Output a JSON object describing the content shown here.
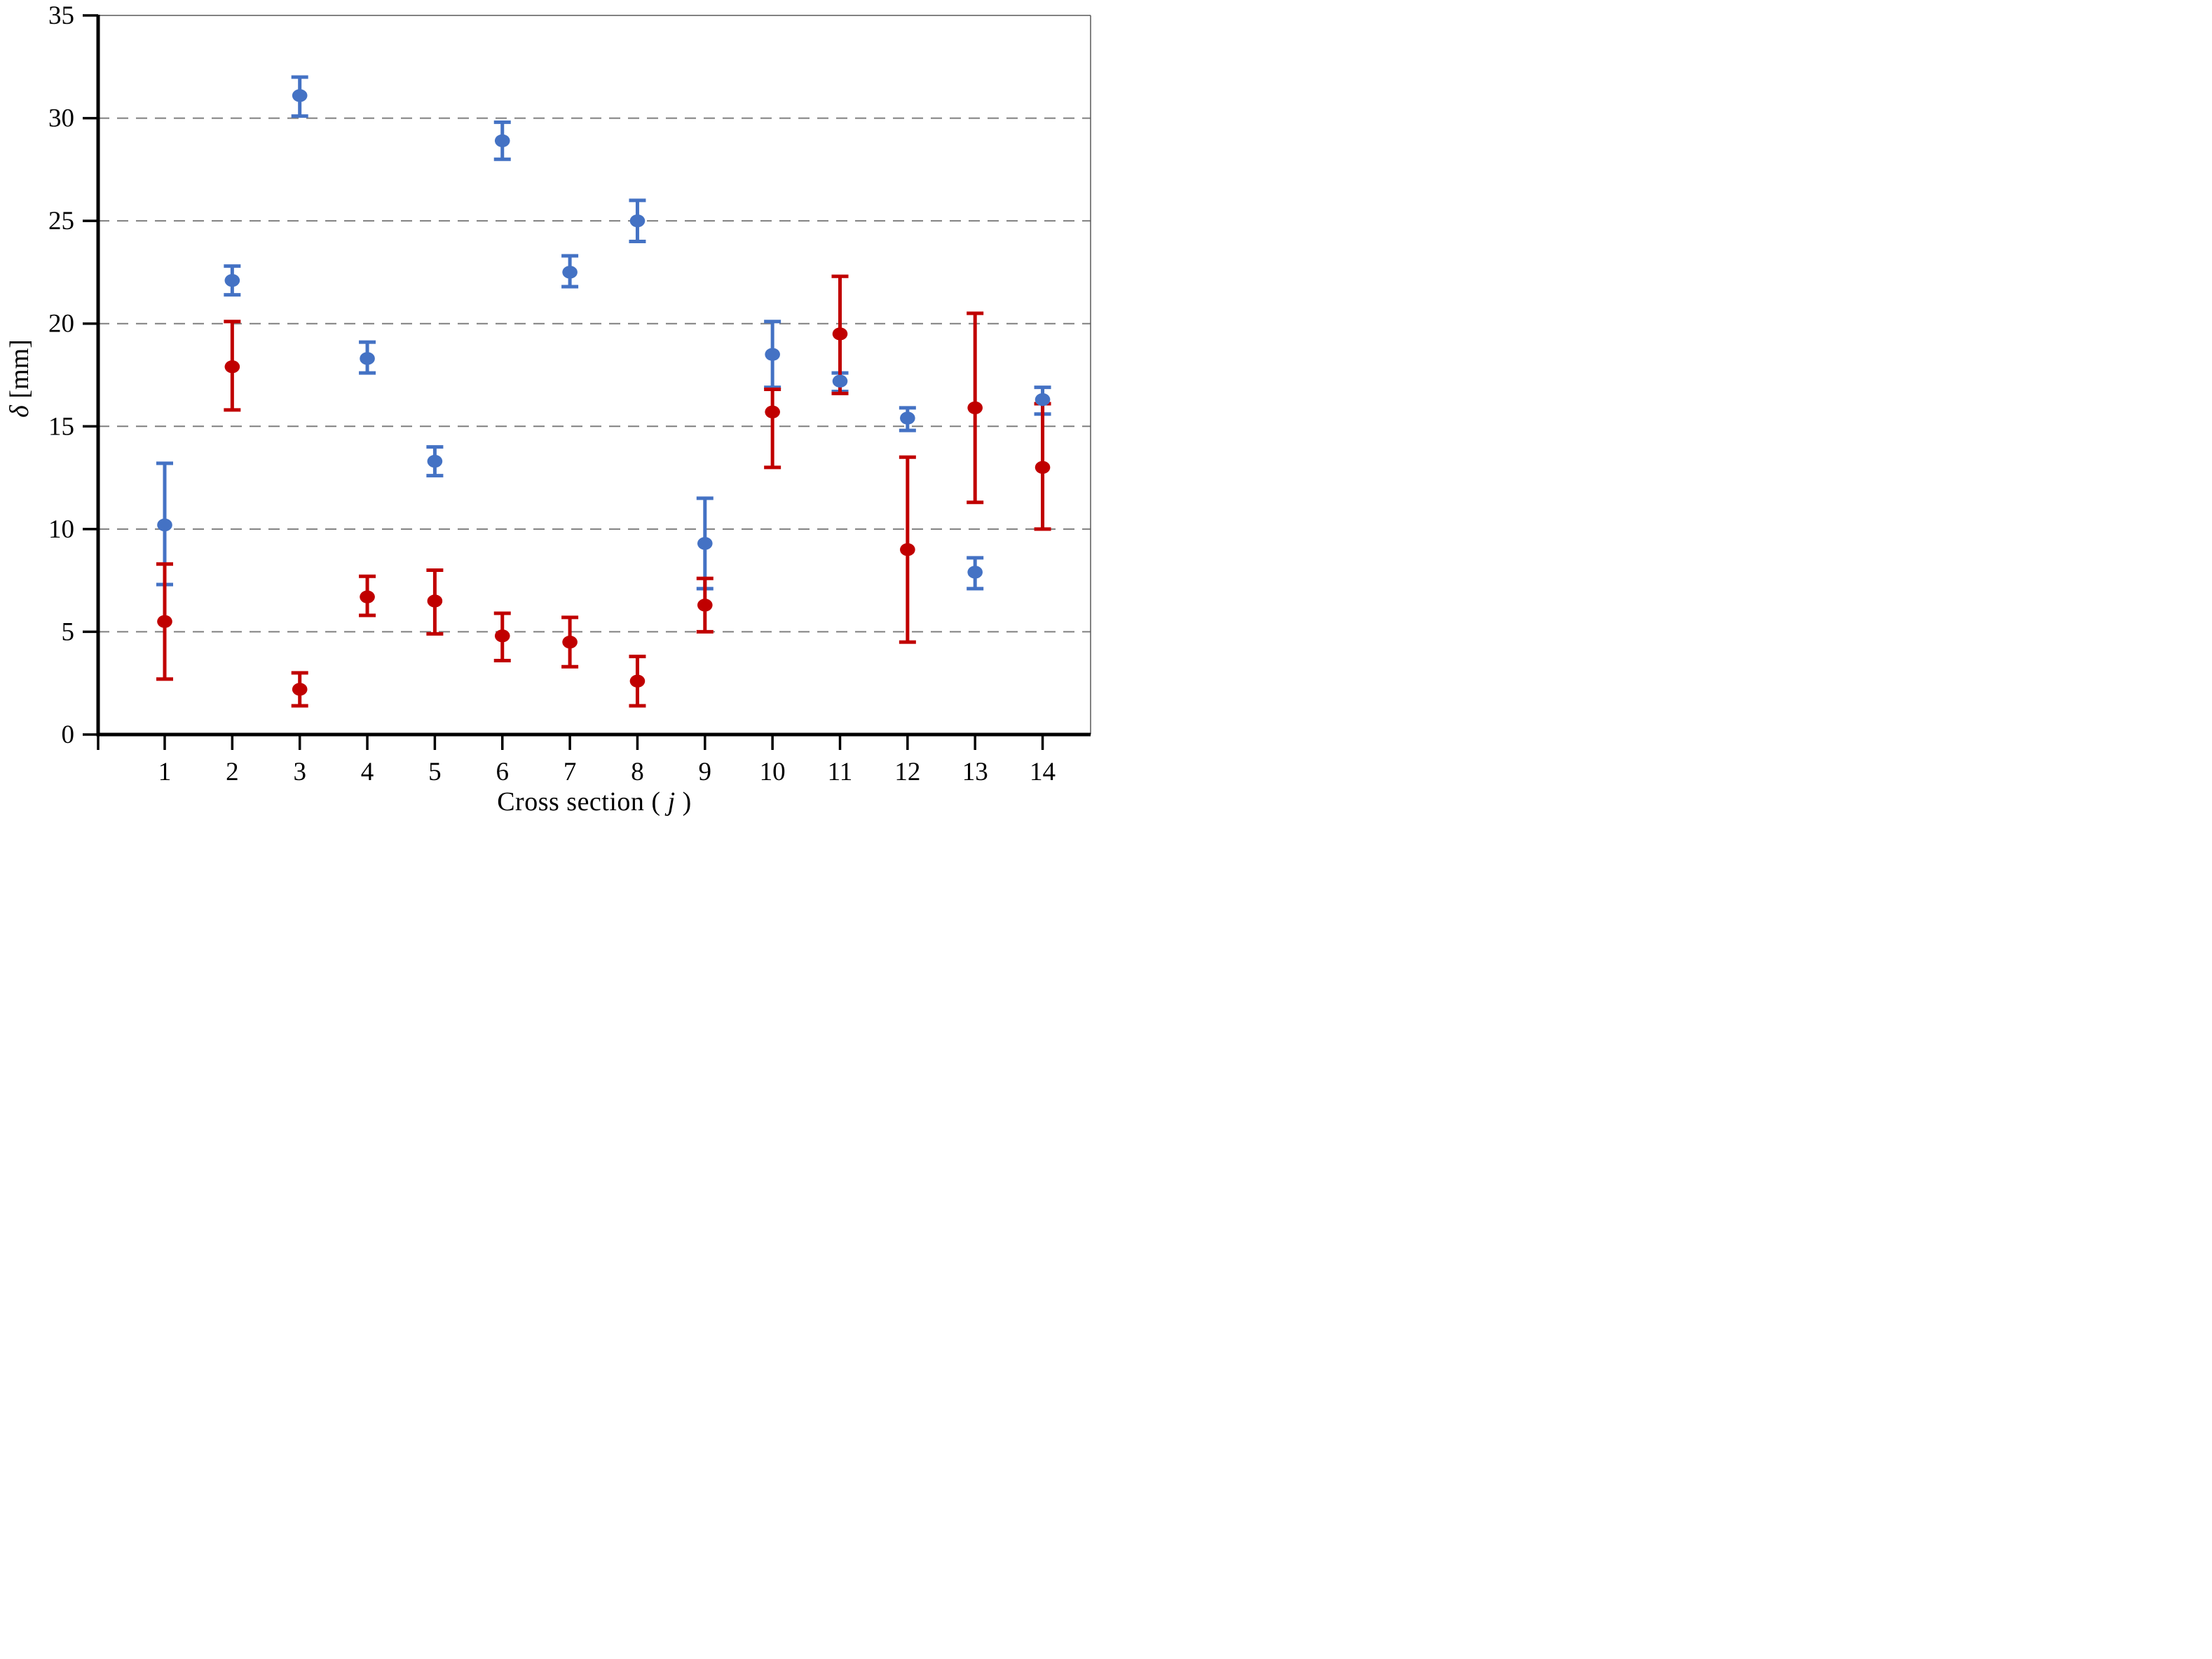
{
  "figure": {
    "background": "#ffffff",
    "plot_border_color": "#595959",
    "axis_color": "#000000",
    "grid_color": "#7f7f7f"
  },
  "axis_titles": {
    "x_prefix": "Cross section ( ",
    "x_var": "j",
    "x_suffix": " )",
    "y_var": "δ",
    "y_rest": " [mm]"
  },
  "chart_data": {
    "type": "scatter",
    "title": "",
    "xlabel": "Cross section ( j )",
    "ylabel": "δ [mm]",
    "x_categories": [
      "1",
      "2",
      "3",
      "4",
      "5",
      "6",
      "7",
      "8",
      "9",
      "10",
      "11",
      "12",
      "13",
      "14"
    ],
    "ylim": [
      0,
      35
    ],
    "yticks": [
      0,
      5,
      10,
      15,
      20,
      25,
      30,
      35
    ],
    "gridline_values": [
      5,
      10,
      15,
      20,
      25,
      30
    ],
    "grid_style": "dashed-horizontal",
    "legend_position": "none",
    "error_bars": "vertical, capped, per point",
    "series": [
      {
        "name": "blue",
        "color": "#4472C4",
        "marker": "ellipse",
        "values": [
          10.2,
          22.1,
          31.1,
          18.3,
          13.3,
          28.9,
          22.5,
          25.0,
          9.3,
          18.5,
          17.2,
          15.4,
          7.9,
          16.3
        ],
        "err_lo": [
          7.3,
          21.4,
          30.1,
          17.6,
          12.6,
          28.0,
          21.8,
          24.0,
          7.1,
          16.9,
          16.7,
          14.8,
          7.1,
          15.6
        ],
        "err_hi": [
          13.2,
          22.8,
          32.0,
          19.1,
          14.0,
          29.8,
          23.3,
          26.0,
          11.5,
          20.1,
          17.6,
          15.9,
          8.6,
          16.9
        ]
      },
      {
        "name": "red",
        "color": "#C00000",
        "marker": "ellipse",
        "values": [
          5.5,
          17.9,
          2.2,
          6.7,
          6.5,
          4.8,
          4.5,
          2.6,
          6.3,
          15.7,
          19.5,
          9.0,
          15.9,
          13.0
        ],
        "err_lo": [
          2.7,
          15.8,
          1.4,
          5.8,
          4.9,
          3.6,
          3.3,
          1.4,
          5.0,
          13.0,
          16.6,
          4.5,
          11.3,
          10.0
        ],
        "err_hi": [
          8.3,
          20.1,
          3.0,
          7.7,
          8.0,
          5.9,
          5.7,
          3.8,
          7.6,
          16.8,
          22.3,
          13.5,
          20.5,
          16.1
        ]
      }
    ]
  }
}
